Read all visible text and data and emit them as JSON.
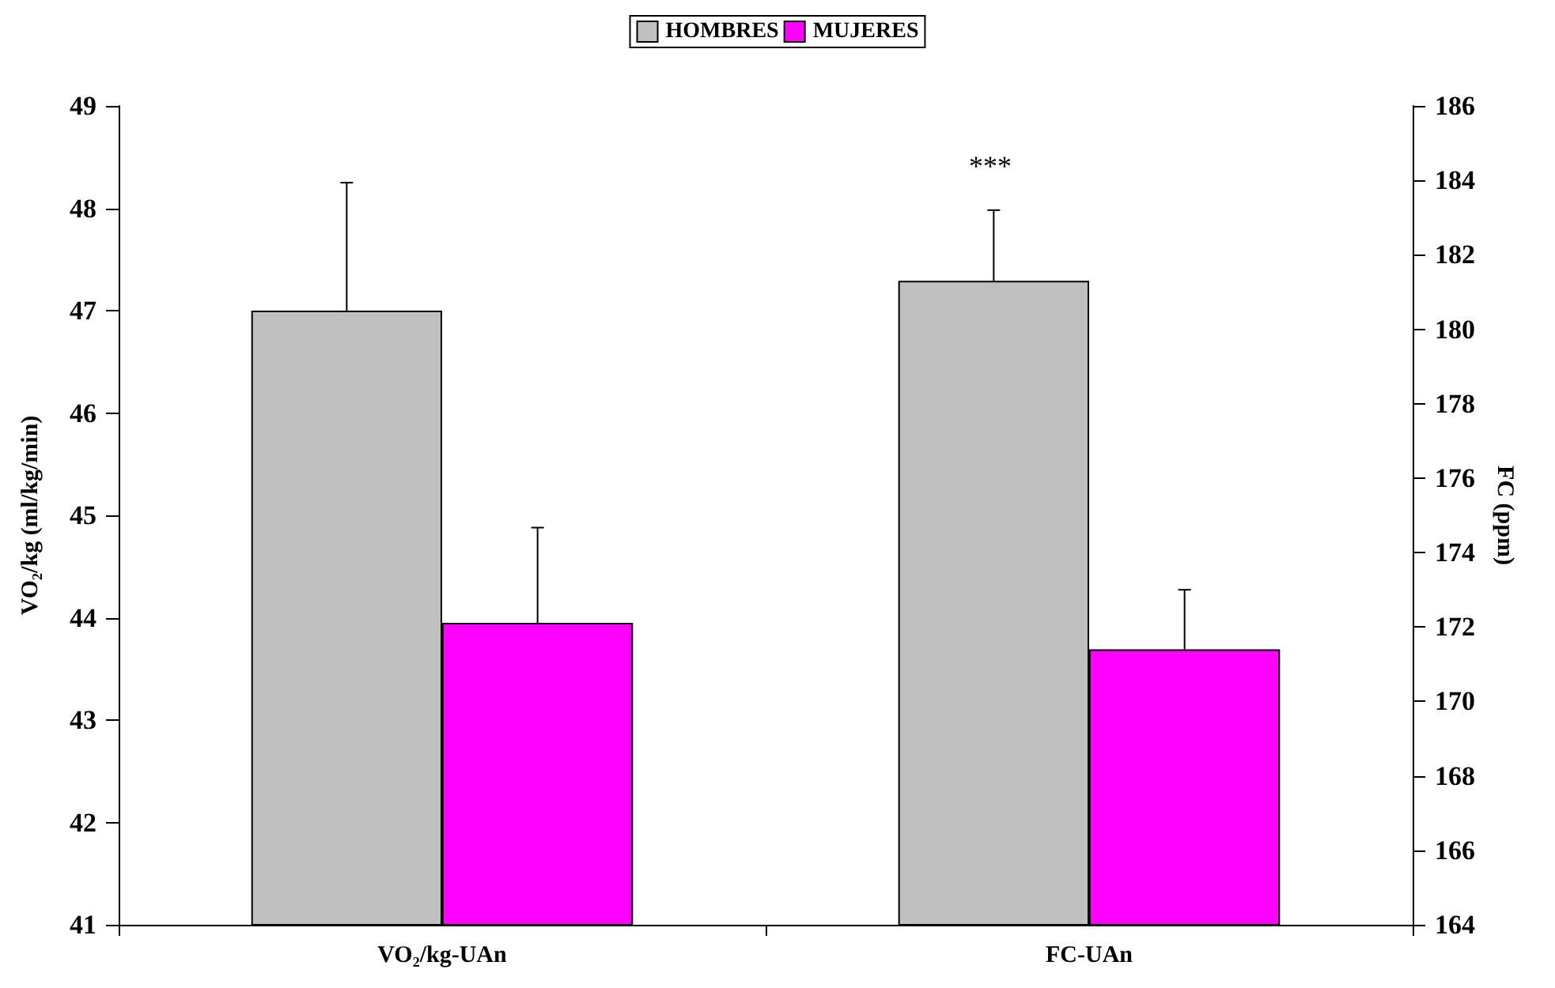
{
  "chart_data": {
    "type": "bar",
    "categories": [
      "VO₂/kg-UAn",
      "FC-UAn"
    ],
    "ylabel": "VO₂/kg (ml/kg/min)",
    "y2label": "FC (ppm)",
    "series": [
      {
        "name": "HOMBRES",
        "color": "#c0c0c0",
        "values": [
          47.0,
          null
        ],
        "errors": [
          [
            47.0,
            48.25
          ],
          null
        ]
      },
      {
        "name": "MUJERES",
        "color": "#ff00ff",
        "values": [
          43.95,
          null
        ],
        "errors": [
          [
            43.95,
            44.88
          ],
          null
        ]
      },
      {
        "color": "#c0c0c0",
        "axis": "y2",
        "values": [
          null,
          181.3
        ],
        "errors": [
          null,
          [
            181.3,
            183.2
          ]
        ]
      },
      {
        "color": "#ff00ff",
        "axis": "y2",
        "values": [
          null,
          171.4
        ],
        "errors": [
          null,
          [
            171.4,
            173.0
          ]
        ]
      }
    ],
    "ylim": [
      41,
      49
    ],
    "yticks": [
      41,
      42,
      43,
      44,
      45,
      46,
      47,
      48,
      49
    ],
    "y2lim": [
      164,
      186
    ],
    "y2ticks": [
      164,
      166,
      168,
      170,
      172,
      174,
      176,
      178,
      180,
      182,
      184,
      186
    ],
    "annotations": [
      "***"
    ],
    "legend": "top",
    "grid": false
  }
}
